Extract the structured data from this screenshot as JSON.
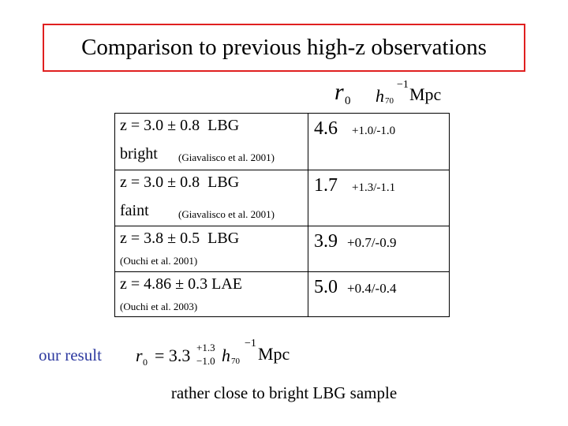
{
  "title": "Comparison to previous high-z observations",
  "header": {
    "symbol": "r",
    "symbol_sub": "0",
    "h": "h",
    "h_sub": "70",
    "h_exp": "−1",
    "unit": "Mpc"
  },
  "table": {
    "rows": [
      {
        "sample": "z = 3.0 ± 0.8  LBG",
        "subsample": "bright",
        "reference": "(Giavalisco et al. 2001)",
        "r0": "4.6",
        "error": "+1.0/-1.0"
      },
      {
        "sample": "z = 3.0 ± 0.8  LBG",
        "subsample": "faint",
        "reference": "(Giavalisco et al. 2001)",
        "r0": "1.7",
        "error": "+1.3/-1.1"
      },
      {
        "sample": "z = 3.8 ± 0.5  LBG",
        "reference": "(Ouchi et al. 2001)",
        "r0": "3.9",
        "error": "+0.7/-0.9"
      },
      {
        "sample": "z = 4.86 ± 0.3 LAE",
        "reference": "(Ouchi et al. 2003)",
        "r0": "5.0",
        "error": "+0.4/-0.4"
      }
    ]
  },
  "result": {
    "label": "our result",
    "symbol": "r",
    "symbol_sub": "0",
    "equals": "= 3.3",
    "upper": "+1.3",
    "lower": "−1.0",
    "h": "h",
    "h_sub": "70",
    "h_exp": "−1",
    "unit": "Mpc"
  },
  "conclusion": "rather close to bright LBG sample"
}
